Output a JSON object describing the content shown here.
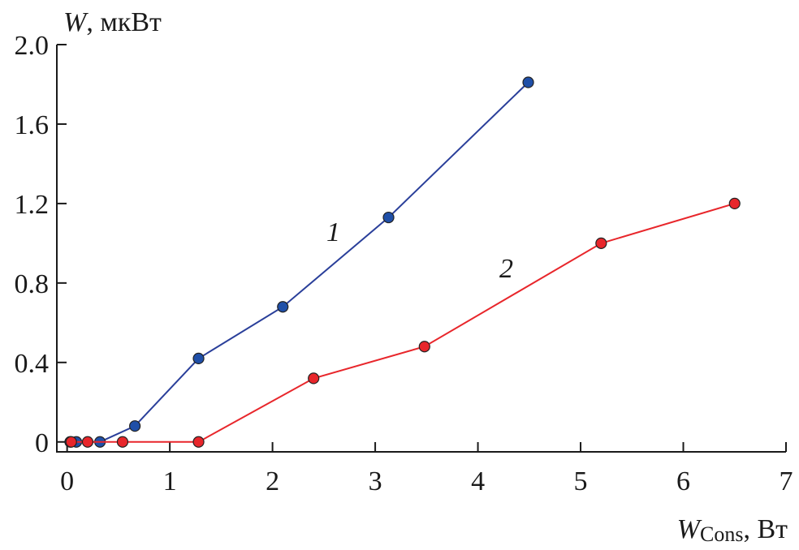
{
  "chart_data": {
    "type": "line",
    "ylabel": {
      "symbol": "W",
      "unit": ", мкВт"
    },
    "xlabel": {
      "symbol": "W",
      "subscript": "Cons",
      "unit": ", Вт"
    },
    "xlim": [
      -0.1,
      7
    ],
    "xticks": [
      0,
      1,
      2,
      3,
      4,
      5,
      6,
      7
    ],
    "ylim": [
      -0.05,
      2.0
    ],
    "yticks": [
      0,
      0.4,
      0.8,
      1.2,
      1.6,
      {
        "value": 2,
        "label": "2.0"
      }
    ],
    "series": [
      {
        "name": "1",
        "color": "#1f4fa8",
        "line_color": "#2a3f9a",
        "x": [
          0.03,
          0.09,
          0.32,
          0.66,
          1.28,
          2.1,
          3.13,
          4.49
        ],
        "values": [
          0,
          0,
          0,
          0.08,
          0.42,
          0.68,
          1.13,
          1.81
        ]
      },
      {
        "name": "2",
        "color": "#e8262b",
        "line_color": "#e8262b",
        "x": [
          0.04,
          0.2,
          0.54,
          1.28,
          2.4,
          3.48,
          5.2,
          6.5
        ],
        "values": [
          0,
          0,
          0,
          0,
          0.32,
          0.48,
          1.0,
          1.2
        ]
      }
    ]
  }
}
